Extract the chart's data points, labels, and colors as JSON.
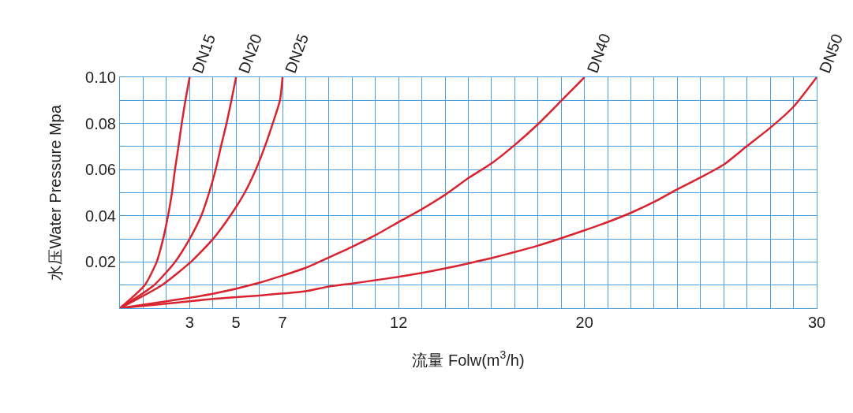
{
  "chart_data": {
    "type": "line",
    "xlabel": "流量 Folw(m$^{3}$/h)",
    "ylabel": "水压Water Pressure Mpa",
    "xlim": [
      0,
      30
    ],
    "ylim": [
      0,
      0.1
    ],
    "xticks": [
      {
        "value": 0,
        "label": null
      },
      {
        "value": 1,
        "label": null
      },
      {
        "value": 2,
        "label": null
      },
      3,
      {
        "value": 4,
        "label": null
      },
      5,
      {
        "value": 6,
        "label": null
      },
      7,
      {
        "value": 8,
        "label": null
      },
      {
        "value": 9,
        "label": null
      },
      {
        "value": 10,
        "label": null
      },
      {
        "value": 11,
        "label": null
      },
      12,
      {
        "value": 13,
        "label": null
      },
      {
        "value": 14,
        "label": null
      },
      {
        "value": 15,
        "label": null
      },
      {
        "value": 16,
        "label": null
      },
      {
        "value": 17,
        "label": null
      },
      {
        "value": 18,
        "label": null
      },
      {
        "value": 19,
        "label": null
      },
      20,
      {
        "value": 21,
        "label": null
      },
      {
        "value": 22,
        "label": null
      },
      {
        "value": 23,
        "label": null
      },
      {
        "value": 24,
        "label": null
      },
      {
        "value": 25,
        "label": null
      },
      {
        "value": 26,
        "label": null
      },
      {
        "value": 27,
        "label": null
      },
      {
        "value": 28,
        "label": null
      },
      {
        "value": 29,
        "label": null
      },
      30
    ],
    "yticks": [
      {
        "value": 0,
        "label": null
      },
      {
        "value": 0.01,
        "label": null
      },
      {
        "value": 0.02,
        "label": "0.02"
      },
      {
        "value": 0.03,
        "label": null
      },
      {
        "value": 0.04,
        "label": "0.04"
      },
      {
        "value": 0.05,
        "label": null
      },
      {
        "value": 0.06,
        "label": "0.06"
      },
      {
        "value": 0.07,
        "label": null
      },
      {
        "value": 0.08,
        "label": "0.08"
      },
      {
        "value": 0.09,
        "label": null
      },
      {
        "value": 0.1,
        "label": "0.10"
      }
    ],
    "grid": true,
    "legend": false,
    "marker": "none",
    "line_style": "solid",
    "series": [
      {
        "name": "DN15",
        "color": "#d9232e",
        "x": [
          0,
          1.07,
          1.58,
          1.86,
          2.07,
          2.24,
          2.37,
          2.52,
          2.66,
          2.82,
          3
        ],
        "values": [
          0,
          0.01,
          0.02,
          0.03,
          0.04,
          0.05,
          0.06,
          0.07,
          0.08,
          0.09,
          0.1
        ]
      },
      {
        "name": "DN20",
        "color": "#d9232e",
        "x": [
          0,
          1.47,
          2.37,
          3.0,
          3.5,
          3.84,
          4.12,
          4.35,
          4.59,
          4.8,
          5
        ],
        "values": [
          0,
          0.01,
          0.02,
          0.03,
          0.04,
          0.05,
          0.06,
          0.07,
          0.08,
          0.09,
          0.1
        ]
      },
      {
        "name": "DN25",
        "color": "#d9232e",
        "x": [
          0,
          1.81,
          3.05,
          4.01,
          4.75,
          5.37,
          5.85,
          6.24,
          6.58,
          6.89,
          7
        ],
        "values": [
          0,
          0.01,
          0.02,
          0.03,
          0.04,
          0.05,
          0.06,
          0.07,
          0.08,
          0.09,
          0.1
        ]
      },
      {
        "name": "DN40",
        "color": "#d9232e",
        "x": [
          0,
          2,
          4,
          6,
          8,
          9,
          10,
          11,
          12,
          13,
          14,
          15,
          16,
          17,
          18,
          19,
          20
        ],
        "values": [
          0,
          0.003,
          0.0062,
          0.011,
          0.0175,
          0.022,
          0.0266,
          0.0316,
          0.0373,
          0.0429,
          0.0491,
          0.0563,
          0.0627,
          0.0707,
          0.0797,
          0.0898,
          0.1
        ]
      },
      {
        "name": "DN50",
        "color": "#d9232e",
        "x": [
          0,
          2,
          4,
          6,
          8,
          9,
          10,
          11,
          12,
          13,
          14,
          15,
          16,
          17,
          18,
          19,
          20,
          21,
          22,
          23,
          24,
          25,
          26,
          27,
          28,
          29,
          30
        ],
        "values": [
          0,
          0.002,
          0.004,
          0.0055,
          0.0073,
          0.0094,
          0.0107,
          0.0121,
          0.0136,
          0.0153,
          0.0172,
          0.0194,
          0.0217,
          0.0243,
          0.0271,
          0.0303,
          0.0337,
          0.0373,
          0.0413,
          0.046,
          0.0515,
          0.0566,
          0.0622,
          0.0702,
          0.0781,
          0.0872,
          0.1
        ]
      }
    ]
  }
}
